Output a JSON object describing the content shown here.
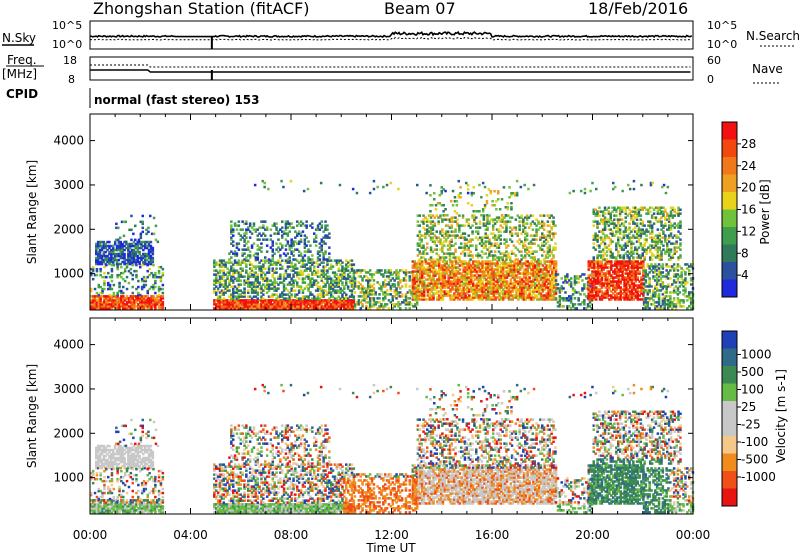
{
  "header": {
    "station_title": "Zhongshan Station (fitACF)",
    "beam_label": "Beam 07",
    "date_label": "18/Feb/2016"
  },
  "top_panels": {
    "nsky_label": "N.Sky",
    "nsky_ticks": [
      "10^5",
      "10^0"
    ],
    "nsearch_label": "N.Search",
    "nsearch_ticks": [
      "10^5",
      "10^0"
    ],
    "freq_label_1": "Freq.",
    "freq_label_2": "[MHz]",
    "freq_ticks": [
      "18",
      "8"
    ],
    "nave_label": "Nave",
    "nave_ticks": [
      "60",
      "0"
    ],
    "cpid_label": "CPID",
    "cpid_value": "normal (fast stereo) 153"
  },
  "colors": {
    "power_scale": [
      "#1e2adc",
      "#2c50a0",
      "#2f7a5a",
      "#3f9e4e",
      "#6fc23a",
      "#e8d21a",
      "#f0a020",
      "#f07818",
      "#f24810",
      "#f21010"
    ],
    "velocity_scale": [
      "#e81414",
      "#f05018",
      "#f08c1e",
      "#f4c888",
      "#c8c8c8",
      "#c8c8c8",
      "#66bb44",
      "#3b8a52",
      "#2f6a88",
      "#2040b8"
    ]
  },
  "chart_data": [
    {
      "type": "heatmap",
      "title": "Power",
      "xlabel": "Time UT",
      "ylabel": "Slant Range [km]",
      "x_ticks": [
        "00:00",
        "04:00",
        "08:00",
        "12:00",
        "16:00",
        "20:00",
        "00:00"
      ],
      "y_ticks": [
        "1000",
        "2000",
        "3000",
        "4000"
      ],
      "ylim": [
        180,
        4600
      ],
      "colorbar_label": "Power [dB]",
      "colorbar_ticks": [
        "4",
        "8",
        "12",
        "16",
        "20",
        "24",
        "28"
      ],
      "colorbar_range": [
        0,
        32
      ],
      "data_gaps_hours": [
        [
          2.9,
          4.9
        ]
      ]
    },
    {
      "type": "heatmap",
      "title": "Velocity",
      "xlabel": "Time UT",
      "ylabel": "Slant Range [km]",
      "x_ticks": [
        "00:00",
        "04:00",
        "08:00",
        "12:00",
        "16:00",
        "20:00",
        "00:00"
      ],
      "y_ticks": [
        "1000",
        "2000",
        "3000",
        "4000"
      ],
      "ylim": [
        180,
        4600
      ],
      "colorbar_label": "Velocity [m s-1]",
      "colorbar_ticks": [
        "1000",
        "500",
        "100",
        "25",
        "-25",
        "-100",
        "-500",
        "-1000"
      ],
      "data_gaps_hours": [
        [
          2.9,
          4.9
        ]
      ]
    }
  ]
}
